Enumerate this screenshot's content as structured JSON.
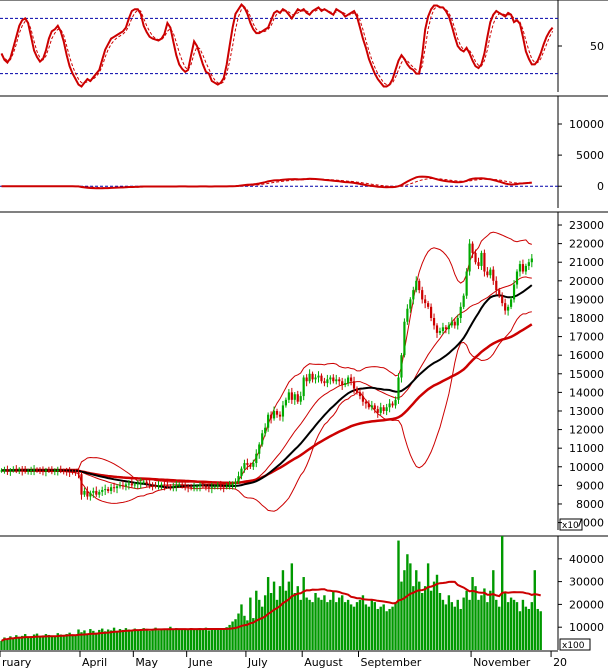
{
  "colors": {
    "background": "#ffffff",
    "red": "#cc0000",
    "dashed": "#0000aa",
    "black": "#000000",
    "up_candle": "#00aa00",
    "down_candle": "#cc0000",
    "volume": "#009900",
    "axis": "#000000"
  },
  "x_axis": {
    "labels": [
      {
        "text": "ruary",
        "idx": 0
      },
      {
        "text": "April",
        "idx": 27
      },
      {
        "text": "May",
        "idx": 45
      },
      {
        "text": "June",
        "idx": 63
      },
      {
        "text": "July",
        "idx": 83
      },
      {
        "text": "August",
        "idx": 102
      },
      {
        "text": "September",
        "idx": 121
      },
      {
        "text": "November",
        "idx": 159
      },
      {
        "text": "20",
        "idx": 186
      }
    ]
  },
  "chart_data": [
    {
      "type": "line",
      "panel": "stochastic",
      "ylim": [
        0,
        100
      ],
      "yticks": [
        {
          "value": 50,
          "label": "50"
        }
      ],
      "ref_lines": [
        20,
        80
      ],
      "series": [
        {
          "key": "k",
          "color": "#cc0000",
          "style": "solid",
          "values": [
            42,
            35,
            32,
            37,
            48,
            60,
            72,
            78,
            80,
            75,
            60,
            45,
            38,
            33,
            36,
            45,
            58,
            66,
            68,
            72,
            66,
            55,
            40,
            28,
            20,
            14,
            8,
            6,
            10,
            14,
            12,
            16,
            20,
            24,
            35,
            46,
            52,
            58,
            60,
            62,
            64,
            66,
            70,
            80,
            88,
            90,
            90,
            85,
            72,
            65,
            60,
            58,
            57,
            56,
            58,
            63,
            75,
            70,
            55,
            40,
            30,
            25,
            22,
            24,
            40,
            55,
            50,
            40,
            30,
            22,
            20,
            12,
            10,
            8,
            10,
            15,
            30,
            50,
            70,
            85,
            90,
            95,
            92,
            85,
            75,
            68,
            64,
            64,
            66,
            68,
            70,
            78,
            86,
            88,
            86,
            90,
            88,
            84,
            80,
            85,
            90,
            88,
            90,
            86,
            84,
            88,
            90,
            92,
            88,
            90,
            88,
            86,
            84,
            90,
            88,
            86,
            82,
            84,
            86,
            88,
            82,
            70,
            58,
            48,
            36,
            28,
            20,
            14,
            10,
            6,
            6,
            8,
            14,
            24,
            34,
            40,
            36,
            30,
            26,
            24,
            20,
            20,
            40,
            68,
            82,
            90,
            94,
            94,
            92,
            92,
            88,
            82,
            72,
            60,
            50,
            46,
            44,
            48,
            42,
            34,
            28,
            26,
            30,
            42,
            60,
            76,
            84,
            88,
            86,
            84,
            82,
            86,
            84,
            76,
            78,
            74,
            60,
            44,
            36,
            30,
            30,
            34,
            42,
            52,
            60,
            66,
            70
          ],
          "note": "values indexed by x position"
        },
        {
          "key": "d",
          "color": "#cc0000",
          "style": "dashed",
          "values": [
            40,
            37,
            34,
            35,
            42,
            52,
            64,
            72,
            77,
            76,
            68,
            55,
            44,
            37,
            35,
            39,
            48,
            58,
            64,
            68,
            68,
            62,
            50,
            38,
            28,
            20,
            14,
            10,
            10,
            11,
            12,
            14,
            17,
            21,
            28,
            38,
            46,
            52,
            56,
            59,
            61,
            63,
            66,
            72,
            80,
            86,
            89,
            88,
            80,
            72,
            66,
            61,
            58,
            57,
            57,
            60,
            66,
            69,
            64,
            54,
            43,
            34,
            27,
            24,
            30,
            42,
            49,
            47,
            40,
            32,
            25,
            18,
            13,
            10,
            9,
            11,
            20,
            33,
            50,
            68,
            82,
            90,
            92,
            89,
            82,
            74,
            68,
            66,
            65,
            66,
            68,
            72,
            80,
            85,
            87,
            88,
            88,
            87,
            84,
            84,
            86,
            88,
            88,
            88,
            86,
            87,
            88,
            90,
            90,
            89,
            89,
            87,
            86,
            87,
            88,
            87,
            85,
            84,
            84,
            86,
            85,
            78,
            68,
            56,
            45,
            35,
            27,
            20,
            15,
            10,
            8,
            8,
            10,
            16,
            24,
            32,
            36,
            34,
            30,
            27,
            24,
            22,
            28,
            48,
            68,
            82,
            90,
            93,
            93,
            92,
            90,
            86,
            79,
            69,
            58,
            50,
            46,
            46,
            45,
            40,
            33,
            29,
            28,
            34,
            46,
            62,
            74,
            82,
            85,
            85,
            84,
            84,
            84,
            80,
            78,
            76,
            68,
            56,
            45,
            36,
            32,
            32,
            36,
            44,
            52,
            60,
            66
          ]
        }
      ]
    },
    {
      "type": "line",
      "panel": "macd",
      "ylim": [
        -3500,
        14500
      ],
      "yticks": [
        {
          "value": 10000,
          "label": "10000"
        },
        {
          "value": 5000,
          "label": "5000"
        },
        {
          "value": 0,
          "label": "0"
        }
      ],
      "ref_lines": [
        0
      ],
      "series": [
        {
          "key": "macd",
          "color": "#cc0000",
          "style": "solid"
        },
        {
          "key": "signal",
          "color": "#cc0000",
          "style": "dashed"
        }
      ]
    },
    {
      "type": "candlestick",
      "panel": "price",
      "ylim": [
        6600,
        23700
      ],
      "yticks": [
        {
          "value": 23000,
          "label": "23000"
        },
        {
          "value": 22000,
          "label": "22000"
        },
        {
          "value": 21000,
          "label": "21000"
        },
        {
          "value": 20000,
          "label": "20000"
        },
        {
          "value": 19000,
          "label": "19000"
        },
        {
          "value": 18000,
          "label": "18000"
        },
        {
          "value": 17000,
          "label": "17000"
        },
        {
          "value": 16000,
          "label": "16000"
        },
        {
          "value": 15000,
          "label": "15000"
        },
        {
          "value": 14000,
          "label": "14000"
        },
        {
          "value": 13000,
          "label": "13000"
        },
        {
          "value": 12000,
          "label": "12000"
        },
        {
          "value": 11000,
          "label": "11000"
        },
        {
          "value": 10000,
          "label": "10000"
        },
        {
          "value": 9000,
          "label": "9000"
        },
        {
          "value": 8000,
          "label": "8000"
        },
        {
          "value": 7000,
          "label": "7000"
        }
      ],
      "multiplier_label": "x10",
      "close": [
        9800,
        9820,
        9780,
        9810,
        9850,
        9830,
        9860,
        9800,
        9750,
        9780,
        9820,
        9850,
        9800,
        9780,
        9760,
        9820,
        9790,
        9770,
        9800,
        9820,
        9780,
        9760,
        9740,
        9720,
        9700,
        9680,
        9600,
        8500,
        8700,
        8400,
        8600,
        8700,
        8500,
        8650,
        8750,
        8800,
        8700,
        8900,
        8850,
        8950,
        9000,
        8950,
        9050,
        9100,
        9000,
        9050,
        9100,
        9150,
        9200,
        9100,
        9050,
        9000,
        8950,
        9000,
        9050,
        9000,
        8950,
        8900,
        8950,
        9000,
        9050,
        9000,
        8950,
        8900,
        8850,
        8900,
        8950,
        9000,
        8950,
        8900,
        8850,
        8900,
        8950,
        9000,
        8950,
        8900,
        8950,
        9000,
        9100,
        9200,
        9500,
        9900,
        10200,
        10100,
        10000,
        10200,
        10700,
        11200,
        11800,
        12100,
        12800,
        12600,
        13000,
        12800,
        12700,
        13300,
        13600,
        14000,
        13600,
        13900,
        13500,
        13800,
        14800,
        14600,
        15000,
        14700,
        14800,
        14900,
        14600,
        14500,
        14700,
        14800,
        14600,
        14700,
        14600,
        14400,
        14500,
        14800,
        14600,
        14200,
        14000,
        13800,
        13500,
        13400,
        13200,
        13300,
        13100,
        12900,
        13200,
        13000,
        13200,
        13400,
        13300,
        13600,
        14800,
        16000,
        17800,
        18500,
        19000,
        19500,
        20000,
        19500,
        19000,
        18800,
        18600,
        18000,
        17600,
        17200,
        17300,
        17500,
        17400,
        17600,
        17800,
        17600,
        18000,
        18600,
        19200,
        20500,
        22000,
        21500,
        21000,
        20800,
        21500,
        20500,
        20300,
        20600,
        20000,
        19500,
        19200,
        18800,
        18400,
        18600,
        19000,
        19800,
        20500,
        20900,
        20500,
        20800,
        21000,
        21200
      ],
      "series": [
        {
          "key": "ma_black",
          "color": "#000000"
        },
        {
          "key": "ma_red",
          "color": "#cc0000"
        },
        {
          "key": "bollinger",
          "color": "#cc0000"
        }
      ]
    },
    {
      "type": "bar",
      "panel": "volume",
      "ylim": [
        0,
        50000
      ],
      "yticks": [
        {
          "value": 40000,
          "label": "40000"
        },
        {
          "value": 30000,
          "label": "30000"
        },
        {
          "value": 20000,
          "label": "20000"
        },
        {
          "value": 10000,
          "label": "10000"
        }
      ],
      "multiplier_label": "x100",
      "values": [
        4000,
        5500,
        4800,
        6000,
        5200,
        6500,
        5800,
        6200,
        7000,
        5400,
        6000,
        6800,
        7200,
        5800,
        6400,
        7000,
        6600,
        5800,
        6200,
        7400,
        6800,
        6000,
        7000,
        7600,
        6800,
        6200,
        9000,
        7800,
        8600,
        7200,
        9200,
        8400,
        7600,
        8800,
        9400,
        8200,
        9000,
        8600,
        9800,
        8400,
        9200,
        8800,
        9600,
        9000,
        8600,
        9400,
        8800,
        9200,
        9600,
        9000,
        8400,
        9200,
        9800,
        8600,
        9400,
        8800,
        9200,
        10200,
        9000,
        9600,
        8800,
        9400,
        9000,
        8800,
        9600,
        9200,
        8800,
        9400,
        9000,
        9800,
        8600,
        9200,
        9600,
        8800,
        9000,
        9400,
        10000,
        11000,
        12500,
        13500,
        16000,
        20000,
        15000,
        13000,
        23000,
        14000,
        26000,
        22000,
        19000,
        24000,
        32000,
        25000,
        30000,
        22000,
        28000,
        35000,
        26000,
        30000,
        38000,
        25000,
        28000,
        22000,
        32000,
        23000,
        22000,
        21000,
        25000,
        23000,
        22000,
        24000,
        21000,
        22000,
        26000,
        21000,
        23000,
        24000,
        21000,
        22000,
        20000,
        19000,
        21000,
        22000,
        24000,
        20000,
        19000,
        22000,
        21000,
        18000,
        19000,
        20000,
        17000,
        18000,
        19000,
        21000,
        48000,
        30000,
        35000,
        42000,
        38000,
        28000,
        35000,
        30000,
        25000,
        28000,
        38000,
        26000,
        30000,
        33000,
        25000,
        22000,
        20000,
        24000,
        21000,
        19000,
        22000,
        18000,
        23000,
        26000,
        22000,
        32000,
        28000,
        22000,
        24000,
        27000,
        21000,
        26000,
        35000,
        22000,
        19000,
        50000,
        25000,
        21000,
        23000,
        22000,
        21000,
        17000,
        22000,
        19000,
        18000,
        21000,
        35000,
        18000,
        17000
      ],
      "series": [
        {
          "key": "volume_ma",
          "color": "#cc0000"
        }
      ]
    }
  ]
}
